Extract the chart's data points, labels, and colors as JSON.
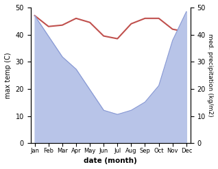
{
  "months": [
    "Jan",
    "Feb",
    "Mar",
    "Apr",
    "May",
    "Jun",
    "Jul",
    "Aug",
    "Sep",
    "Oct",
    "Nov",
    "Dec"
  ],
  "month_indices": [
    0,
    1,
    2,
    3,
    4,
    5,
    6,
    7,
    8,
    9,
    10,
    11
  ],
  "temperature": [
    47,
    43,
    43.5,
    46,
    44.5,
    39.5,
    38.5,
    44,
    46,
    46,
    42,
    41
  ],
  "precipitation": [
    310,
    260,
    210,
    180,
    130,
    80,
    70,
    80,
    100,
    140,
    250,
    320
  ],
  "temp_color": "#c0504d",
  "precip_fill_color": "#b8c4e8",
  "precip_edge_color": "#8899d4",
  "background_color": "#ffffff",
  "ylabel_left": "max temp (C)",
  "ylabel_right": "med. precipitation (kg/m2)",
  "xlabel": "date (month)",
  "ylim_left": [
    0,
    50
  ],
  "ylim_right": [
    0,
    330
  ],
  "right_yticks": [
    0,
    10,
    20,
    30,
    40,
    50
  ],
  "right_ytick_vals": [
    0,
    66,
    132,
    198,
    264,
    330
  ],
  "title": "",
  "temp_linewidth": 1.5
}
